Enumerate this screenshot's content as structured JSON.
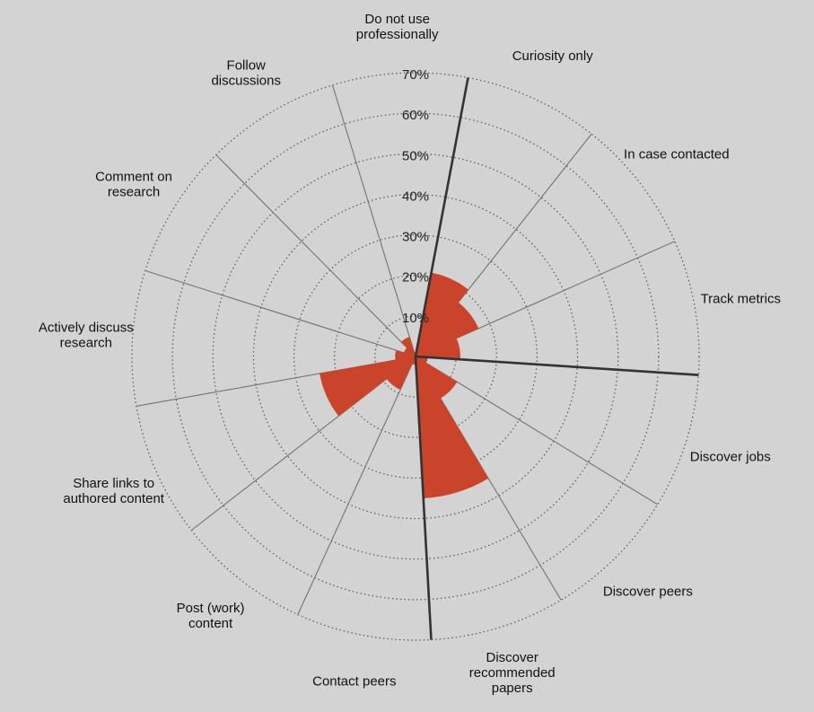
{
  "chart_data": {
    "type": "polar-bar",
    "title": "",
    "tick_labels": [
      "10%",
      "20%",
      "30%",
      "40%",
      "50%",
      "60%",
      "70%"
    ],
    "rmax": 70,
    "grid": true,
    "categories": [
      "Do not use professionally",
      "Curiosity only",
      "In case contacted",
      "Track metrics",
      "Discover jobs",
      "Discover peers",
      "Discover recommended papers",
      "Contact peers",
      "Post (work) content",
      "Share links to authored content",
      "Actively discuss research",
      "Comment on research",
      "Follow discussions"
    ],
    "label_lines": [
      [
        "Do not use",
        "professionally"
      ],
      [
        "Curiosity only"
      ],
      [
        "In case contacted"
      ],
      [
        "Track metrics"
      ],
      [
        "Discover jobs"
      ],
      [
        "Discover peers"
      ],
      [
        "Discover",
        "recommended",
        "papers"
      ],
      [
        "Contact peers"
      ],
      [
        "Post (work)",
        "content"
      ],
      [
        "Share links to",
        "authored content"
      ],
      [
        "Actively discuss",
        "research"
      ],
      [
        "Comment on",
        "research"
      ],
      [
        "Follow",
        "discussions"
      ]
    ],
    "values": [
      1,
      21,
      17,
      11,
      3,
      12,
      35,
      2,
      9,
      24,
      5,
      3,
      5
    ],
    "group_separators_after": [
      0,
      3,
      6
    ]
  }
}
